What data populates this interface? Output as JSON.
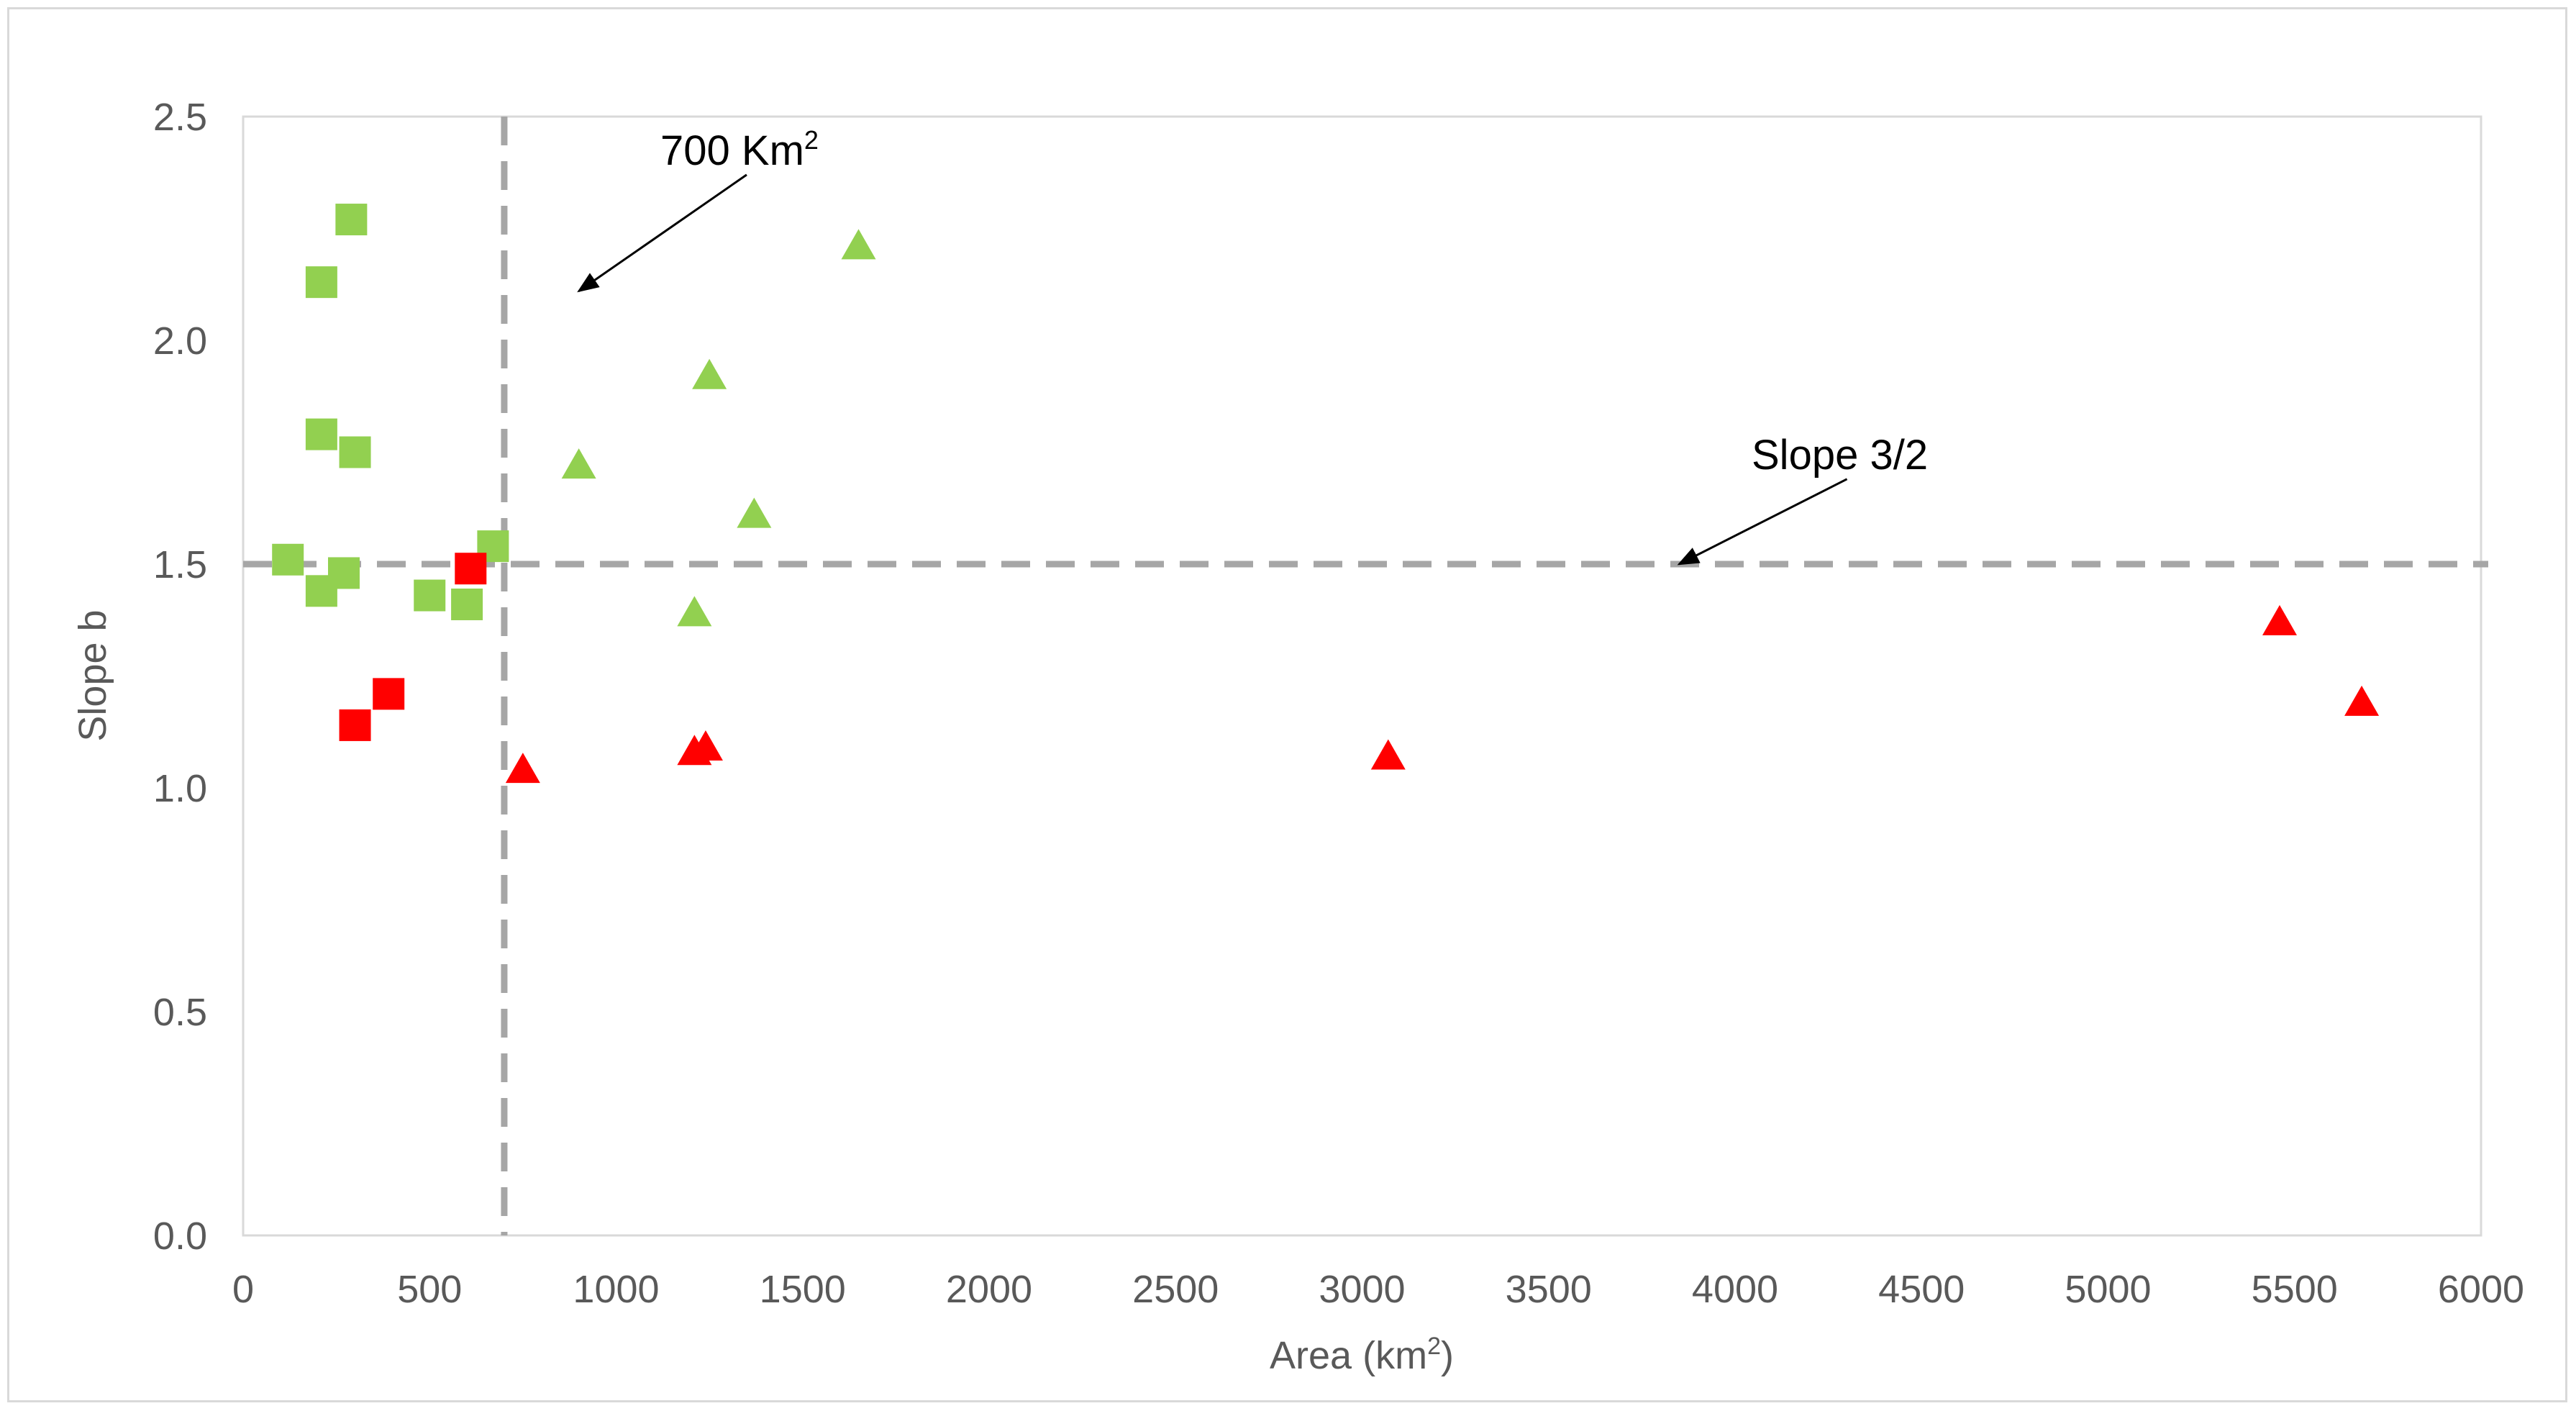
{
  "chart_data": {
    "type": "scatter",
    "xlabel_prefix": "Area (km",
    "xlabel_sup": "2",
    "xlabel_suffix": ")",
    "ylabel": "Slope b",
    "xlim": [
      0,
      6000
    ],
    "ylim": [
      0,
      2.5
    ],
    "x_ticks": [
      "0",
      "500",
      "1000",
      "1500",
      "2000",
      "2500",
      "3000",
      "3500",
      "4000",
      "4500",
      "5000",
      "5500",
      "6000"
    ],
    "y_ticks": [
      "0.0",
      "0.5",
      "1.0",
      "1.5",
      "2.0",
      "2.5"
    ],
    "grid": false,
    "colors": {
      "green": "#92d050",
      "red": "#ff0000",
      "reference_line": "#a6a6a6",
      "arrow": "#000000",
      "axis_text": "#595959"
    },
    "series": [
      {
        "marker": "square",
        "color": "green",
        "points": [
          [
            290,
            2.27
          ],
          [
            210,
            2.13
          ],
          [
            210,
            1.79
          ],
          [
            300,
            1.75
          ],
          [
            120,
            1.51
          ],
          [
            270,
            1.48
          ],
          [
            210,
            1.44
          ],
          [
            500,
            1.43
          ],
          [
            600,
            1.41
          ],
          [
            670,
            1.54
          ]
        ]
      },
      {
        "marker": "square",
        "color": "red",
        "points": [
          [
            610,
            1.49
          ],
          [
            390,
            1.21
          ],
          [
            300,
            1.14
          ]
        ]
      },
      {
        "marker": "triangle",
        "color": "green",
        "points": [
          [
            1650,
            2.21
          ],
          [
            1250,
            1.92
          ],
          [
            900,
            1.72
          ],
          [
            1370,
            1.61
          ],
          [
            1210,
            1.39
          ]
        ]
      },
      {
        "marker": "triangle",
        "color": "red",
        "points": [
          [
            750,
            1.04
          ],
          [
            1210,
            1.08
          ],
          [
            1240,
            1.09
          ],
          [
            3070,
            1.07
          ],
          [
            5460,
            1.37
          ],
          [
            5680,
            1.19
          ]
        ]
      }
    ],
    "reference_lines": [
      {
        "orientation": "vertical",
        "x": 700
      },
      {
        "orientation": "horizontal",
        "y": 1.5
      }
    ],
    "annotations": [
      {
        "text_main": "700 Km",
        "text_sup": "2",
        "arrow_from": [
          1350,
          2.37
        ],
        "arrow_to": [
          900,
          2.11
        ]
      },
      {
        "text_main": "Slope 3/2",
        "arrow_from": [
          4300,
          1.69
        ],
        "arrow_to": [
          3850,
          1.5
        ]
      }
    ]
  }
}
